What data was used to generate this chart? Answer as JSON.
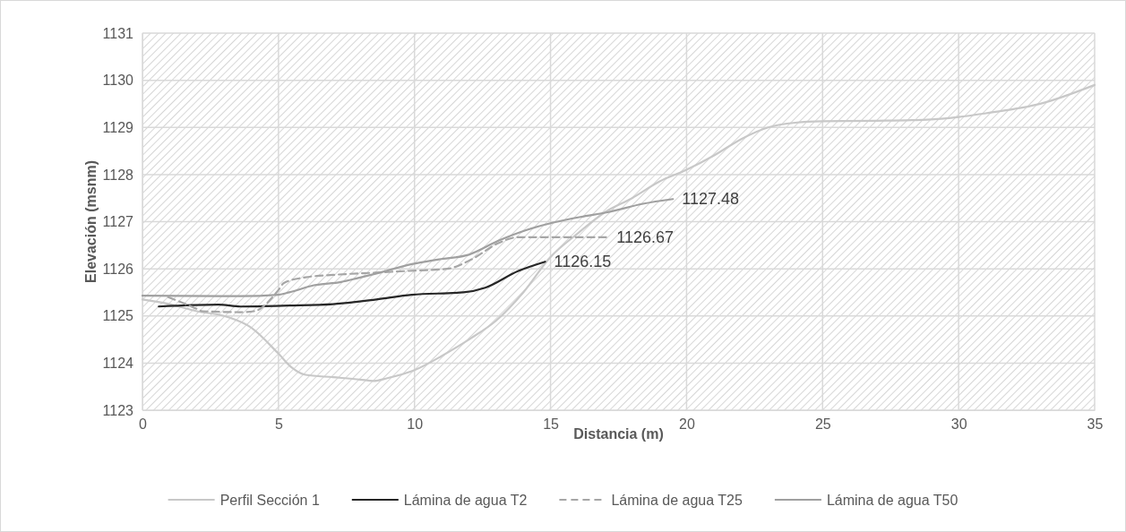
{
  "chart_data": {
    "type": "line",
    "xlabel": "Distancia (m)",
    "ylabel": "Elevación (msnm)",
    "xlim": [
      0,
      35
    ],
    "xticks": [
      0,
      5,
      10,
      15,
      20,
      25,
      30,
      35
    ],
    "ylim": [
      1123,
      1131
    ],
    "yticks": [
      1123,
      1124,
      1125,
      1126,
      1127,
      1128,
      1129,
      1130,
      1131
    ],
    "grid": true,
    "legend": "bottom",
    "marker": "none",
    "series": [
      {
        "name": "Perfil Sección 1",
        "color": "#c8c8c8",
        "line_style": "solid",
        "x": [
          0,
          1,
          2,
          3,
          4,
          5,
          5.5,
          6,
          7,
          8,
          8.5,
          9,
          10,
          11,
          12,
          13,
          14,
          15,
          16,
          17,
          18,
          19,
          20,
          21,
          22,
          23,
          24,
          25,
          27,
          29,
          30,
          31,
          33,
          35
        ],
        "values": [
          1125.35,
          1125.25,
          1125.1,
          1125.0,
          1124.75,
          1124.2,
          1123.9,
          1123.75,
          1123.7,
          1123.65,
          1123.62,
          1123.68,
          1123.85,
          1124.15,
          1124.5,
          1124.9,
          1125.5,
          1126.25,
          1126.75,
          1127.2,
          1127.5,
          1127.85,
          1128.1,
          1128.4,
          1128.75,
          1129.0,
          1129.1,
          1129.13,
          1129.14,
          1129.17,
          1129.22,
          1129.3,
          1129.5,
          1129.9
        ]
      },
      {
        "name": "Lámina de agua T2",
        "color": "#262626",
        "line_style": "solid",
        "x": [
          0.6,
          2.8,
          3.6,
          5.4,
          7.0,
          8.6,
          9.9,
          11.8,
          12.6,
          13.8,
          14.8
        ],
        "values": [
          1125.2,
          1125.24,
          1125.2,
          1125.22,
          1125.25,
          1125.35,
          1125.45,
          1125.5,
          1125.6,
          1125.95,
          1126.15
        ]
      },
      {
        "name": "Lámina de agua T25",
        "color": "#a6a6a6",
        "line_style": "dashed",
        "x": [
          0.95,
          2.0,
          2.2,
          3.6,
          4.1,
          5.0,
          5.2,
          6.0,
          7.0,
          8.6,
          9.6,
          11.2,
          12.1,
          13.1,
          13.8,
          17.1
        ],
        "values": [
          1125.4,
          1125.15,
          1125.1,
          1125.08,
          1125.1,
          1125.55,
          1125.7,
          1125.82,
          1125.87,
          1125.92,
          1125.95,
          1126.0,
          1126.2,
          1126.55,
          1126.67,
          1126.67
        ]
      },
      {
        "name": "Lámina de agua T50",
        "color": "#a0a0a0",
        "line_style": "solid",
        "x": [
          0,
          3.6,
          5.0,
          5.4,
          6.3,
          7.3,
          7.9,
          8.6,
          9.9,
          10.9,
          12.0,
          13.1,
          14.1,
          15.1,
          16.1,
          17.1,
          18.4,
          19.5
        ],
        "values": [
          1125.43,
          1125.42,
          1125.45,
          1125.5,
          1125.65,
          1125.72,
          1125.8,
          1125.9,
          1126.1,
          1126.2,
          1126.3,
          1126.6,
          1126.82,
          1126.98,
          1127.1,
          1127.2,
          1127.38,
          1127.48
        ]
      }
    ],
    "annotations": [
      {
        "text": "1127.48",
        "x": 19.5,
        "y": 1127.48
      },
      {
        "text": "1126.67",
        "x": 17.1,
        "y": 1126.67
      },
      {
        "text": "1126.15",
        "x": 14.8,
        "y": 1126.15
      }
    ]
  }
}
